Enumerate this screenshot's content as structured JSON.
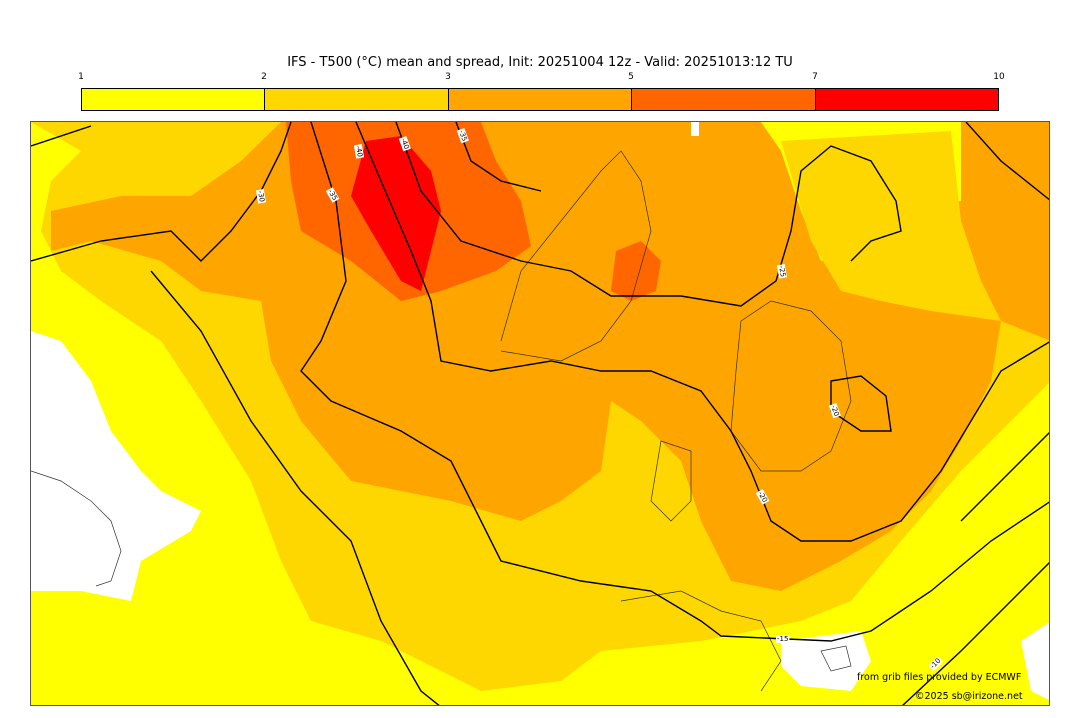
{
  "title": "IFS - T500 (°C) mean and spread, Init: 20251004 12z - Valid: 20251013:12 TU",
  "colorbar": {
    "ticks": [
      "1",
      "2",
      "3",
      "5",
      "7",
      "10"
    ],
    "colors": [
      "#ffff00",
      "#ffd700",
      "#ffa500",
      "#ff6600",
      "#ff0000"
    ]
  },
  "map": {
    "no_data_color": "#ffffff",
    "contour_labels": [
      "-30",
      "-35",
      "-40",
      "-40",
      "-35",
      "-25",
      "-20",
      "-20",
      "-15",
      "-10"
    ]
  },
  "credits": {
    "source": "from grib files provided by ECMWF",
    "copyright": "©2025 sb@irizone.net"
  }
}
